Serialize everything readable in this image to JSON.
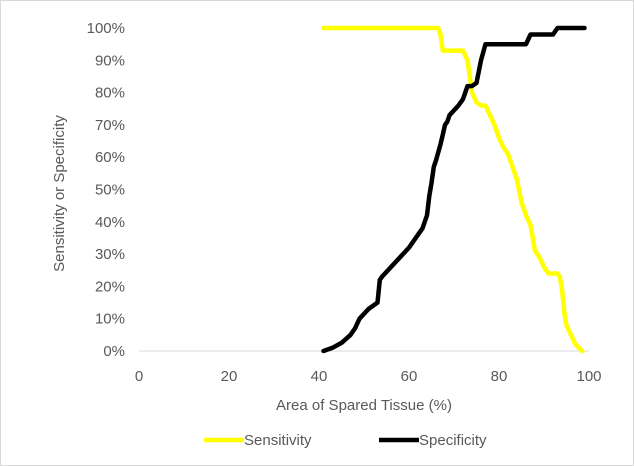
{
  "chart_data": {
    "type": "line",
    "title": "",
    "xlabel": "Area of Spared Tissue (%)",
    "ylabel": "Sensitivity or Specificity",
    "xlim": [
      0,
      100
    ],
    "ylim": [
      0,
      1
    ],
    "x_ticks": [
      0,
      20,
      40,
      60,
      80,
      100
    ],
    "x_tick_labels": [
      "0",
      "20",
      "40",
      "60",
      "80",
      "100"
    ],
    "y_ticks": [
      0,
      0.1,
      0.2,
      0.3,
      0.4,
      0.5,
      0.6,
      0.7,
      0.8,
      0.9,
      1.0
    ],
    "y_tick_labels": [
      "0%",
      "10%",
      "20%",
      "30%",
      "40%",
      "50%",
      "60%",
      "70%",
      "80%",
      "90%",
      "100%"
    ],
    "grid": false,
    "legend_position": "bottom",
    "series": [
      {
        "name": "Sensitivity",
        "color": "#ffff00",
        "points": [
          [
            41,
            1.0
          ],
          [
            66.5,
            1.0
          ],
          [
            67,
            0.98
          ],
          [
            67.5,
            0.93
          ],
          [
            69,
            0.93
          ],
          [
            70,
            0.93
          ],
          [
            72,
            0.93
          ],
          [
            73,
            0.9
          ],
          [
            73.5,
            0.85
          ],
          [
            74,
            0.8
          ],
          [
            75,
            0.77
          ],
          [
            76,
            0.76
          ],
          [
            77,
            0.76
          ],
          [
            78,
            0.73
          ],
          [
            79,
            0.7
          ],
          [
            80,
            0.66
          ],
          [
            81,
            0.63
          ],
          [
            82,
            0.61
          ],
          [
            83,
            0.57
          ],
          [
            84,
            0.53
          ],
          [
            85,
            0.46
          ],
          [
            86,
            0.42
          ],
          [
            87,
            0.39
          ],
          [
            88,
            0.31
          ],
          [
            89,
            0.29
          ],
          [
            90,
            0.26
          ],
          [
            91,
            0.24
          ],
          [
            93,
            0.24
          ],
          [
            93.5,
            0.23
          ],
          [
            94,
            0.19
          ],
          [
            94.5,
            0.12
          ],
          [
            95,
            0.08
          ],
          [
            96,
            0.05
          ],
          [
            97,
            0.02
          ],
          [
            98.5,
            0.0
          ]
        ]
      },
      {
        "name": "Specificity",
        "color": "#000000",
        "points": [
          [
            41,
            0.0
          ],
          [
            43,
            0.01
          ],
          [
            45,
            0.025
          ],
          [
            47,
            0.05
          ],
          [
            48,
            0.07
          ],
          [
            49,
            0.1
          ],
          [
            51,
            0.13
          ],
          [
            53,
            0.15
          ],
          [
            53.5,
            0.22
          ],
          [
            54,
            0.23
          ],
          [
            56,
            0.26
          ],
          [
            58,
            0.29
          ],
          [
            60,
            0.32
          ],
          [
            62,
            0.36
          ],
          [
            63,
            0.38
          ],
          [
            64,
            0.42
          ],
          [
            64.5,
            0.48
          ],
          [
            65,
            0.52
          ],
          [
            65.5,
            0.57
          ],
          [
            66,
            0.59
          ],
          [
            67,
            0.64
          ],
          [
            67.5,
            0.67
          ],
          [
            68,
            0.7
          ],
          [
            68.5,
            0.71
          ],
          [
            69,
            0.73
          ],
          [
            71,
            0.76
          ],
          [
            72,
            0.78
          ],
          [
            73,
            0.82
          ],
          [
            74,
            0.82
          ],
          [
            75,
            0.83
          ],
          [
            76,
            0.9
          ],
          [
            77,
            0.95
          ],
          [
            80,
            0.95
          ],
          [
            86,
            0.95
          ],
          [
            87,
            0.98
          ],
          [
            92,
            0.98
          ],
          [
            93,
            1.0
          ],
          [
            99,
            1.0
          ]
        ]
      }
    ]
  }
}
